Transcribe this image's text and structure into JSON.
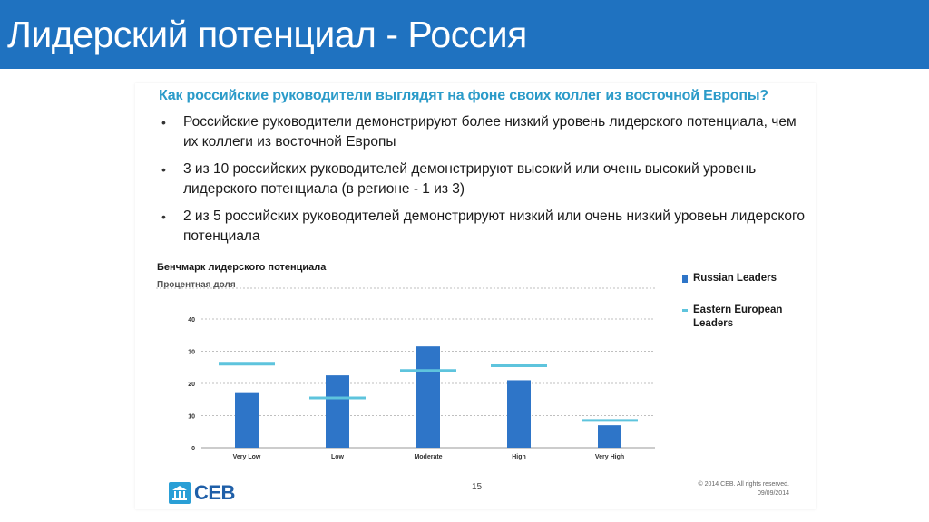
{
  "slide": {
    "title": "Лидерский потенциал - Россия",
    "question": "Как российские руководители выглядят на фоне своих коллег из восточной Европы?",
    "bullets": [
      "Российские руководители демонстрируют более низкий уровень лидерского потенциала, чем их коллеги из восточной Европы",
      "3 из 10 российских руководителей демонстрируют высокий или очень высокий уровень лидерского потенциала (в регионе  - 1 из 3)",
      "2 из 5 российских руководителей демонстрируют низкий или очень низкий уровеьн лидерского потенциала"
    ],
    "page_number": "15",
    "copyright": "© 2014 CEB. All rights reserved.",
    "date": "09/09/2014",
    "logo_text": "CEB"
  },
  "colors": {
    "header": "#1f72c0",
    "question": "#2b9bc9",
    "bar": "#2e75c8",
    "line": "#5ec4dd",
    "grid": "#bfbfbf"
  },
  "chart_data": {
    "type": "bar",
    "title": "Бенчмарк лидерского потенциала",
    "subtitle": "Процентная доля",
    "categories": [
      "Very Low",
      "Low",
      "Moderate",
      "High",
      "Very High"
    ],
    "series": [
      {
        "name": "Russian Leaders",
        "kind": "bar",
        "values": [
          17,
          22.5,
          31.5,
          21,
          7
        ]
      },
      {
        "name": "Eastern European Leaders",
        "kind": "marker",
        "values": [
          26,
          15.5,
          24,
          25.5,
          8.5
        ]
      }
    ],
    "ylim": [
      0,
      40
    ],
    "yticks": [
      0,
      10,
      20,
      30,
      40
    ],
    "grid": true,
    "legend_position": "right"
  }
}
